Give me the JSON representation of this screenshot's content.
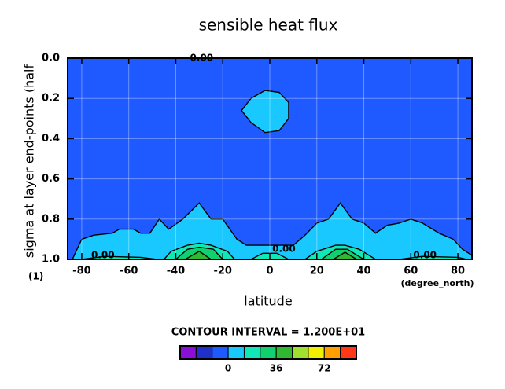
{
  "chart_data": {
    "type": "contour",
    "title": "sensible heat flux",
    "x_label": "latitude",
    "x_unit": "(degree_north)",
    "y_label": "sigma at layer end-points (half",
    "y_unit": "(1)",
    "note": "CONTOUR INTERVAL = 1.200E+01",
    "xlim": [
      -86,
      86
    ],
    "xticks": [
      -80,
      -60,
      -40,
      -20,
      0,
      20,
      40,
      60,
      80
    ],
    "ylim": [
      0,
      1
    ],
    "y_inverted": true,
    "yticks": [
      {
        "value": 0,
        "label": "0.0"
      },
      {
        "value": 0.2,
        "label": "0.2"
      },
      {
        "value": 0.4,
        "label": "0.4"
      },
      {
        "value": 0.6,
        "label": "0.6"
      },
      {
        "value": 0.8,
        "label": "0.8"
      },
      {
        "value": 1,
        "label": "1.0"
      }
    ],
    "grid": true,
    "background_level": -12,
    "regions": [
      {
        "level": 0,
        "lat": [
          -84,
          -80,
          -75,
          -67,
          -64,
          -58,
          -55,
          -51,
          -47,
          -43,
          -37,
          -30,
          -25,
          -20,
          -17,
          -14,
          -10,
          0,
          10,
          15,
          20,
          25,
          30,
          35,
          40,
          45,
          50,
          55,
          60,
          65,
          72,
          78,
          82,
          86,
          86,
          -84
        ],
        "sigma": [
          1.0,
          0.9,
          0.88,
          0.87,
          0.85,
          0.85,
          0.87,
          0.87,
          0.8,
          0.85,
          0.8,
          0.72,
          0.8,
          0.8,
          0.85,
          0.9,
          0.93,
          0.93,
          0.93,
          0.88,
          0.82,
          0.8,
          0.72,
          0.8,
          0.82,
          0.87,
          0.83,
          0.82,
          0.8,
          0.82,
          0.87,
          0.9,
          0.95,
          0.98,
          1.0,
          1.0
        ]
      },
      {
        "level": 0,
        "lat": [
          -12,
          -8,
          -2,
          4,
          8,
          8,
          4,
          -2,
          -8
        ],
        "sigma": [
          0.26,
          0.2,
          0.16,
          0.17,
          0.22,
          0.3,
          0.36,
          0.37,
          0.32
        ]
      },
      {
        "level": 12,
        "lat": [
          -45,
          -42,
          -35,
          -30,
          -25,
          -18,
          -15
        ],
        "sigma": [
          1.0,
          0.96,
          0.93,
          0.92,
          0.93,
          0.96,
          1.0
        ]
      },
      {
        "level": 12,
        "lat": [
          15,
          20,
          28,
          32,
          38,
          45
        ],
        "sigma": [
          1.0,
          0.96,
          0.93,
          0.93,
          0.95,
          1.0
        ]
      },
      {
        "level": 12,
        "lat": [
          -8,
          -3,
          3,
          8
        ],
        "sigma": [
          1.0,
          0.97,
          0.97,
          1.0
        ]
      },
      {
        "level": 12,
        "lat": [
          -80,
          -70,
          -55,
          -48
        ],
        "sigma": [
          1.0,
          0.985,
          0.99,
          1.0
        ]
      },
      {
        "level": 12,
        "lat": [
          55,
          65,
          80,
          84
        ],
        "sigma": [
          1.0,
          0.985,
          0.99,
          1.0
        ]
      },
      {
        "level": 24,
        "lat": [
          -40,
          -35,
          -30,
          -24,
          -20
        ],
        "sigma": [
          1.0,
          0.95,
          0.94,
          0.95,
          1.0
        ]
      },
      {
        "level": 24,
        "lat": [
          22,
          28,
          33,
          40
        ],
        "sigma": [
          1.0,
          0.95,
          0.95,
          1.0
        ]
      },
      {
        "level": 36,
        "lat": [
          -36,
          -30,
          -25
        ],
        "sigma": [
          1.0,
          0.96,
          1.0
        ]
      },
      {
        "level": 36,
        "lat": [
          27,
          32,
          37
        ],
        "sigma": [
          1.0,
          0.965,
          1.0
        ]
      }
    ],
    "contour_labels": [
      {
        "text": "0.00",
        "lat": -29,
        "sigma": 0.0
      },
      {
        "text": "0.00",
        "lat": -71,
        "sigma": 0.98
      },
      {
        "text": "0.00",
        "lat": 6,
        "sigma": 0.95
      },
      {
        "text": "0.00",
        "lat": 66,
        "sigma": 0.98
      }
    ],
    "colorbar": {
      "levels": [
        -36,
        -24,
        -12,
        0,
        12,
        24,
        36,
        48,
        60,
        72,
        84,
        96
      ],
      "colors": [
        "#8a10d8",
        "#2030c8",
        "#1e5aff",
        "#18c8ff",
        "#10e8b8",
        "#10d070",
        "#30b830",
        "#a0e030",
        "#f0f000",
        "#ffa000",
        "#ff3818"
      ],
      "ticks": [
        0,
        36,
        72
      ]
    }
  }
}
